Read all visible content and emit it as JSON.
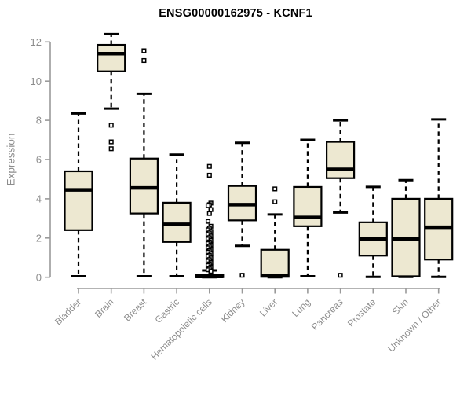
{
  "title": "ENSG00000162975 - KCNF1",
  "colors": {
    "box_fill": "#ede8d1",
    "box_border": "#000000",
    "median": "#000000",
    "axis_line": "#9a9a9a",
    "axis_text": "#8d8d8d",
    "title_text": "#000000",
    "outlier_fill": "#ffffff",
    "background": "#ffffff"
  },
  "chart_data": {
    "type": "boxplot",
    "title": "ENSG00000162975 - KCNF1",
    "xlabel": "",
    "ylabel": "Expression",
    "ylim": [
      0,
      12
    ],
    "yticks": [
      0,
      2,
      4,
      6,
      8,
      10,
      12
    ],
    "grid": false,
    "legend": "none",
    "categories": [
      "Bladder",
      "Brain",
      "Breast",
      "Gastric",
      "Hematopoietic cells",
      "Kidney",
      "Liver",
      "Lung",
      "Pancreas",
      "Prostate",
      "Skin",
      "Unknown / Other"
    ],
    "series": [
      {
        "name": "Bladder",
        "low": 0.05,
        "q1": 2.4,
        "median": 4.45,
        "q3": 5.4,
        "high": 8.35,
        "outliers": []
      },
      {
        "name": "Brain",
        "low": 8.6,
        "q1": 10.5,
        "median": 11.4,
        "q3": 11.85,
        "high": 12.4,
        "outliers": [
          7.75,
          6.9,
          6.55
        ]
      },
      {
        "name": "Breast",
        "low": 0.05,
        "q1": 3.25,
        "median": 4.55,
        "q3": 6.05,
        "high": 9.35,
        "outliers": [
          11.55,
          11.05
        ]
      },
      {
        "name": "Gastric",
        "low": 0.05,
        "q1": 1.8,
        "median": 2.7,
        "q3": 3.8,
        "high": 6.25,
        "outliers": []
      },
      {
        "name": "Hematopoietic cells",
        "low": 0.0,
        "q1": 0.0,
        "median": 0.04,
        "q3": 0.13,
        "high": 0.35,
        "outliers": [
          5.65,
          5.2,
          3.78,
          3.7,
          3.65,
          3.45,
          3.25,
          2.85,
          2.6,
          2.5,
          2.42,
          2.34,
          2.26,
          2.18,
          2.1,
          2.02,
          1.95,
          1.88,
          1.8,
          1.72,
          1.65,
          1.58,
          1.5,
          1.42,
          1.35,
          1.28,
          1.2,
          1.12,
          1.05,
          0.98,
          0.9,
          0.82,
          0.75,
          0.68,
          0.6,
          0.52,
          0.45,
          0.38,
          0.3
        ]
      },
      {
        "name": "Kidney",
        "low": 1.6,
        "q1": 2.9,
        "median": 3.7,
        "q3": 4.65,
        "high": 6.85,
        "outliers": [
          0.1
        ]
      },
      {
        "name": "Liver",
        "low": 0.0,
        "q1": 0.02,
        "median": 0.1,
        "q3": 1.4,
        "high": 3.2,
        "outliers": [
          4.5,
          3.85
        ]
      },
      {
        "name": "Lung",
        "low": 0.05,
        "q1": 2.6,
        "median": 3.05,
        "q3": 4.6,
        "high": 7.0,
        "outliers": []
      },
      {
        "name": "Pancreas",
        "low": 3.3,
        "q1": 5.05,
        "median": 5.5,
        "q3": 6.9,
        "high": 8.0,
        "outliers": [
          0.1
        ]
      },
      {
        "name": "Prostate",
        "low": 0.02,
        "q1": 1.1,
        "median": 1.95,
        "q3": 2.8,
        "high": 4.6,
        "outliers": []
      },
      {
        "name": "Skin",
        "low": 0.02,
        "q1": 0.05,
        "median": 1.95,
        "q3": 4.0,
        "high": 4.95,
        "outliers": []
      },
      {
        "name": "Unknown / Other",
        "low": 0.02,
        "q1": 0.9,
        "median": 2.55,
        "q3": 4.0,
        "high": 8.05,
        "outliers": []
      }
    ]
  }
}
